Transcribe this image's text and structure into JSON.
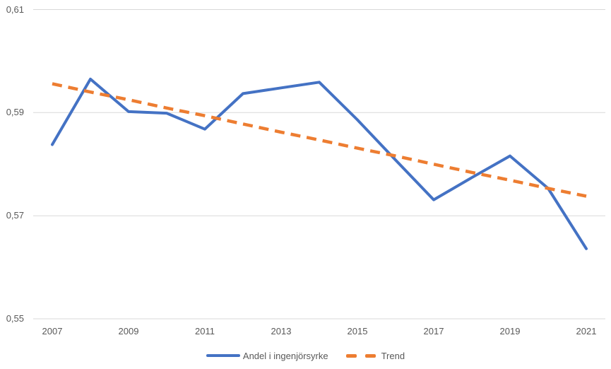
{
  "chart_data": {
    "type": "line",
    "title": "",
    "x": [
      2007,
      2008,
      2009,
      2010,
      2011,
      2012,
      2013,
      2014,
      2015,
      2016,
      2017,
      2018,
      2019,
      2020,
      2021
    ],
    "series": [
      {
        "name": "Andel i ingenjörsyrke",
        "color": "#4472C4",
        "line_style": "solid",
        "values": [
          0.5838,
          0.5965,
          0.5902,
          0.5899,
          0.5868,
          0.5937,
          0.5948,
          0.5959,
          0.5886,
          0.5808,
          0.5731,
          0.5774,
          0.5816,
          0.5753,
          0.5636
        ]
      },
      {
        "name": "Trend",
        "color": "#ED7D31",
        "line_style": "dashed",
        "values": [
          0.5956,
          0.594,
          0.5925,
          0.5909,
          0.5894,
          0.5878,
          0.5862,
          0.5847,
          0.5831,
          0.5816,
          0.58,
          0.5784,
          0.5769,
          0.5753,
          0.5738
        ]
      }
    ],
    "ylim": [
      0.55,
      0.61
    ],
    "yticks": [
      0.61,
      0.59,
      0.57,
      0.55
    ],
    "ytick_labels": [
      "0,61",
      "0,59",
      "0,57",
      "0,55"
    ],
    "xtick_indices": [
      0,
      2,
      4,
      6,
      8,
      10,
      12,
      14
    ],
    "xtick_labels": [
      "2007",
      "2009",
      "2011",
      "2013",
      "2015",
      "2017",
      "2019",
      "2021"
    ],
    "grid": "horizontal",
    "grid_color": "#D9D9D9",
    "text_color": "#595959",
    "background_color": "#FFFFFF",
    "legend_position": "bottom"
  }
}
